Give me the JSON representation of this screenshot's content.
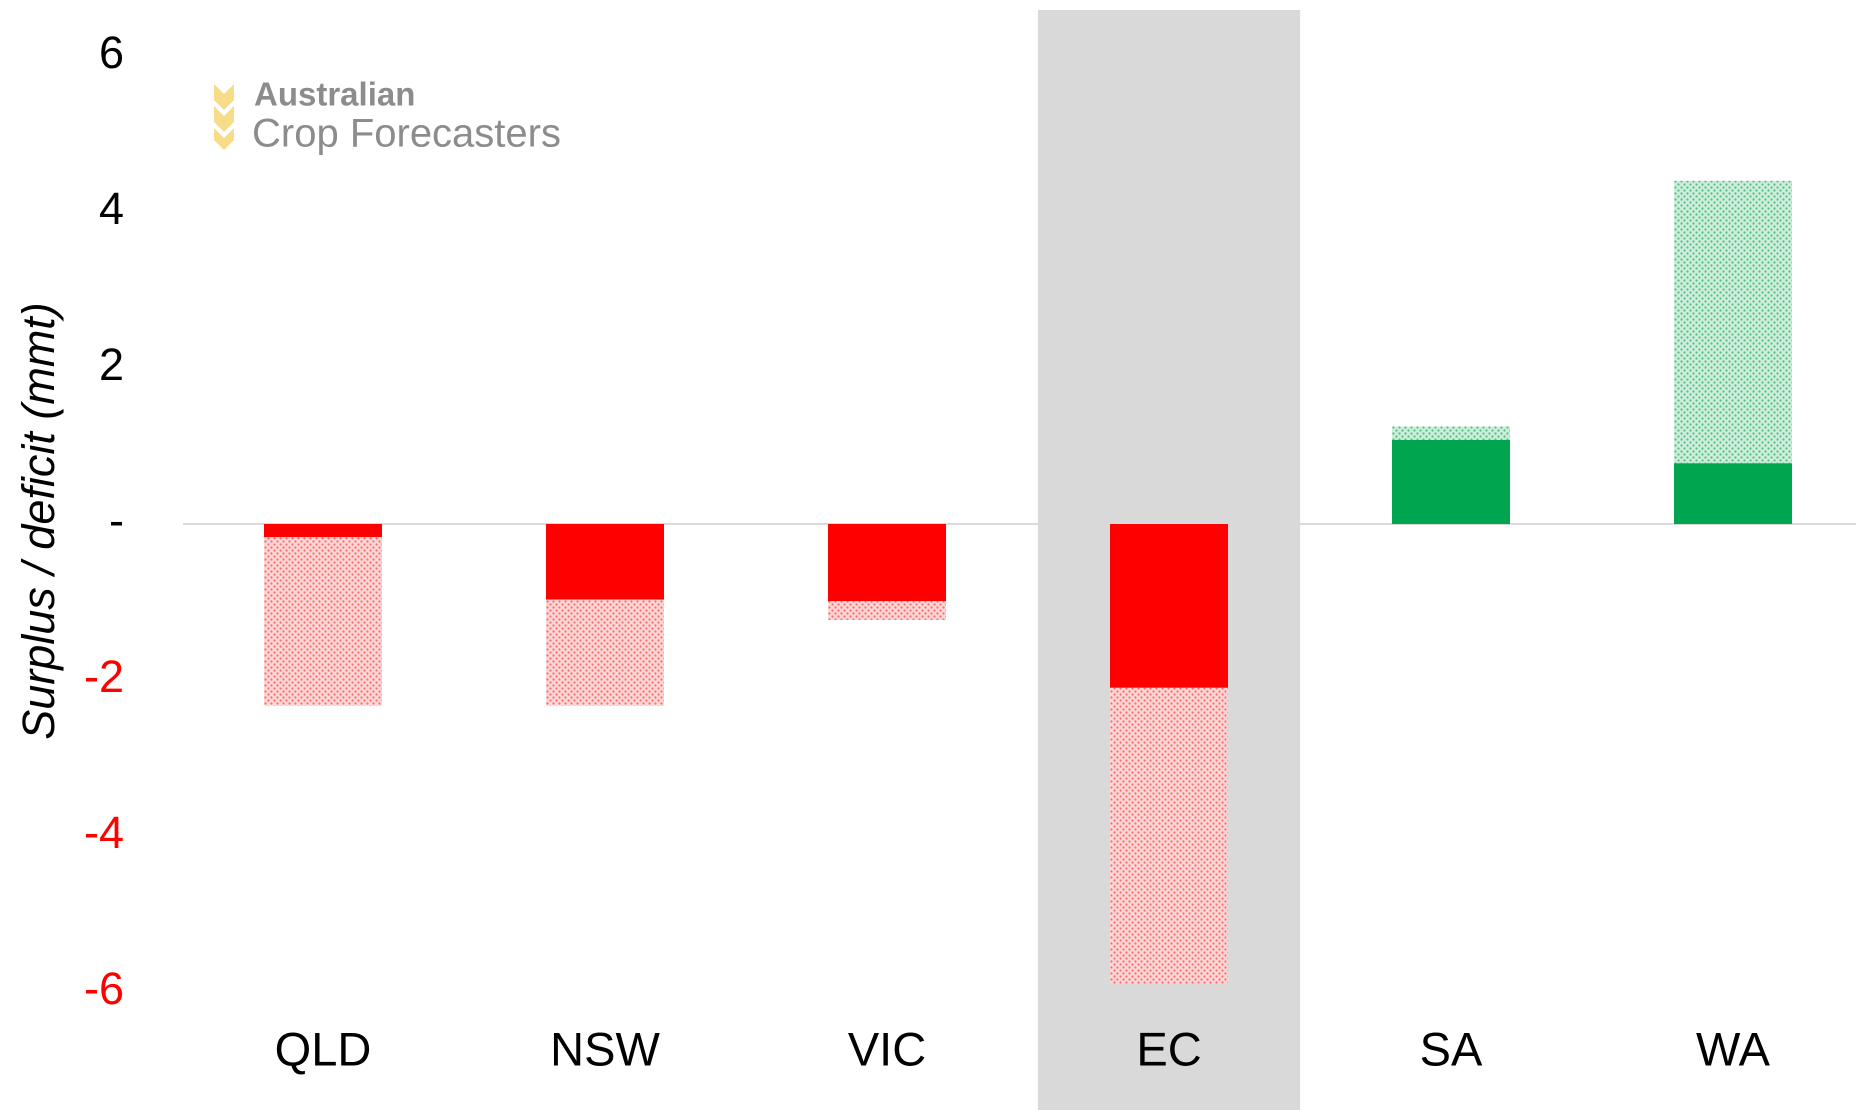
{
  "chart_data": {
    "type": "bar",
    "stacked": true,
    "y_label": "Surplus / deficit (mmt)",
    "logo": {
      "line1": "Australian",
      "line2": "Crop Forecasters"
    },
    "categories": [
      "QLD",
      "NSW",
      "VIC",
      "EC",
      "SA",
      "WA"
    ],
    "highlight_index": 3,
    "highlight_color": "#d9d9d9",
    "positive_color": "#00a550",
    "negative_color": "#ff0000",
    "series": [
      {
        "hatched": false,
        "values": [
          -0.17,
          -0.97,
          -0.99,
          -2.1,
          1.08,
          0.78
        ]
      },
      {
        "hatched": true,
        "values": [
          -2.16,
          -1.36,
          -0.24,
          -3.79,
          0.17,
          3.62
        ]
      }
    ],
    "ylim": [
      -6,
      6
    ],
    "yticks": [
      6,
      4,
      2,
      {
        "value": 0,
        "label": "-"
      },
      -2,
      -4,
      -6
    ],
    "grid": false
  }
}
